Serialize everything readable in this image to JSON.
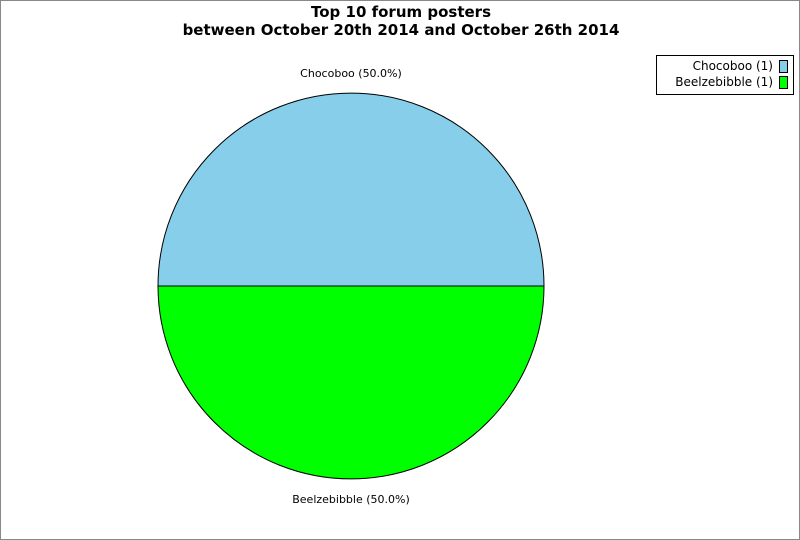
{
  "chart_data": {
    "type": "pie",
    "title_lines": [
      "Top 10 forum posters",
      "between October 20th 2014 and October 26th 2014"
    ],
    "slices": [
      {
        "name": "Chocoboo",
        "value": 1,
        "percent_label": "Chocoboo (50.0%)",
        "legend_label": "Chocoboo (1)",
        "color": "#87CEEB"
      },
      {
        "name": "Beelzebibble",
        "value": 1,
        "percent_label": "Beelzebibble (50.0%)",
        "legend_label": "Beelzebibble (1)",
        "color": "#00FF00"
      }
    ],
    "legend_position": "top-right"
  }
}
